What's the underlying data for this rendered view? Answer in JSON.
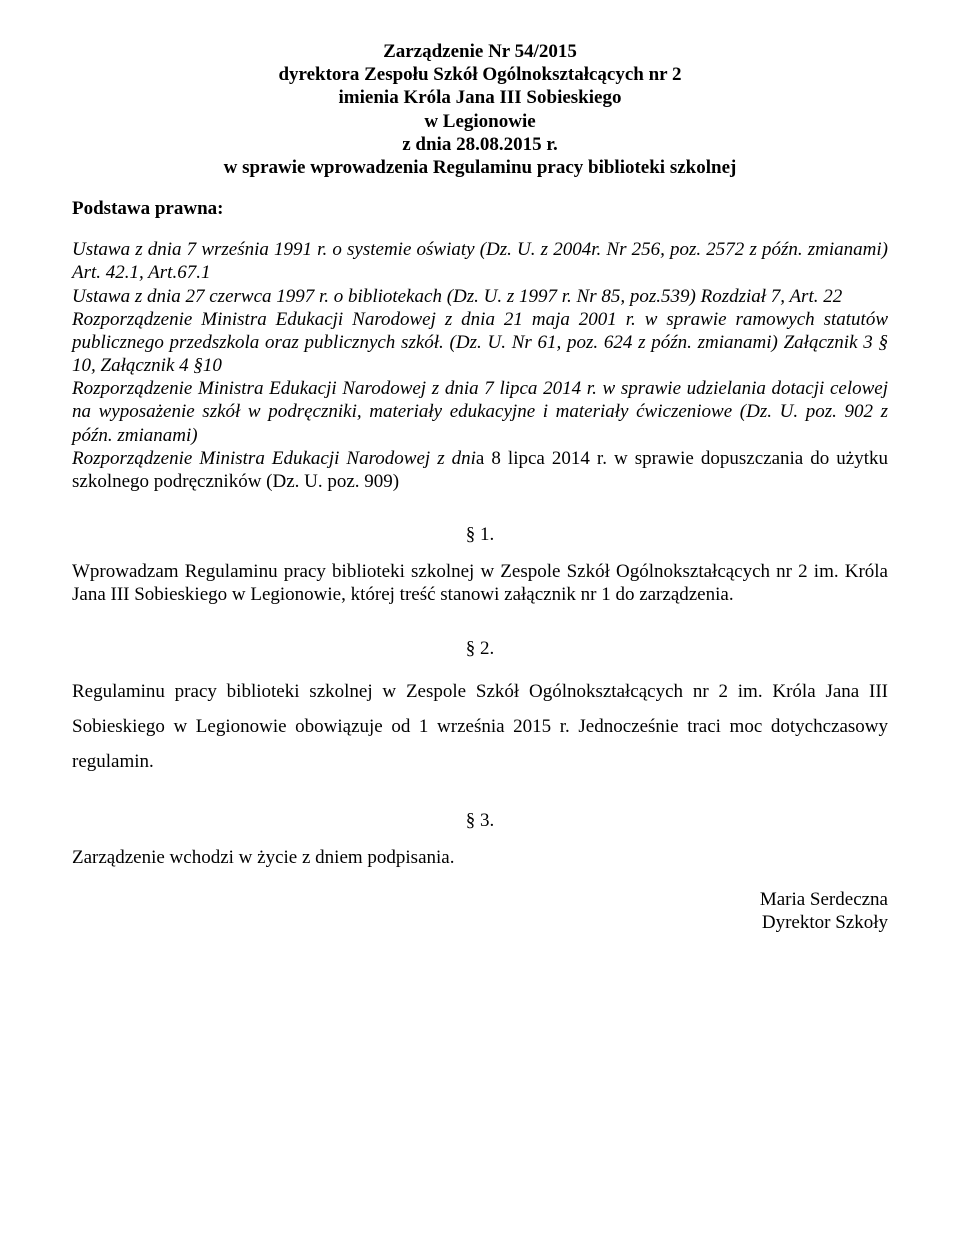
{
  "title": {
    "line1": "Zarządzenie Nr 54/2015",
    "line2": "dyrektora Zespołu Szkół Ogólnokształcących nr 2",
    "line3": "imienia Króla Jana III Sobieskiego",
    "line4": "w Legionowie",
    "line5": "z dnia 28.08.2015 r.",
    "line6": "w sprawie wprowadzenia Regulaminu pracy biblioteki szkolnej"
  },
  "podstawa_label": "Podstawa prawna:",
  "legal": {
    "p1": "Ustawa z dnia 7 września 1991 r. o systemie oświaty (Dz. U. z 2004r. Nr 256, poz. 2572 z późn. zmianami) Art. 42.1, Art.67.1",
    "p2": "Ustawa z dnia 27 czerwca 1997 r. o bibliotekach (Dz. U. z 1997 r. Nr 85, poz.539) Rozdział 7, Art. 22",
    "p3a": "Rozporządzenie Ministra Edukacji Narodowej z dnia 21 maja 2001 r.",
    "p3b": " w sprawie ramowych statutów publicznego przedszkola oraz publicznych szkół. (Dz. U. Nr 61, poz. 624 z późn. zmianami) Załącznik 3 § 10, Załącznik 4 §10",
    "p4": "Rozporządzenie Ministra Edukacji Narodowej z dnia 7 lipca 2014 r. w sprawie udzielania dotacji celowej na wyposażenie szkół w podręczniki, materiały edukacyjne i materiały ćwiczeniowe (Dz. U. poz. 902 z późn. zmianami)",
    "p5a": "Rozporządzenie Ministra Edukacji Narodowej z dni",
    "p5b": "a 8 lipca 2014 r. w sprawie dopuszczania do użytku szkolnego podręczników (Dz. U. poz. 909)"
  },
  "sections": {
    "s1_num": "§ 1.",
    "s1_text": "Wprowadzam Regulaminu pracy biblioteki szkolnej w Zespole Szkół Ogólnokształcących nr 2 im. Króla Jana III Sobieskiego w Legionowie, której treść stanowi załącznik nr 1 do zarządzenia.",
    "s2_num": "§ 2.",
    "s2_text_a": "Regulaminu pracy biblioteki szkolnej w Zespole Szkół Ogólnokształcących nr 2 im.",
    "s2_text_b": " Króla Jana III Sobieskiego w Legionowie obowiązuje od 1 września 2015 r. Jednocześnie traci moc dotychczasowy regulamin.",
    "s3_num": "§ 3.",
    "s3_text": "Zarządzenie wchodzi w życie z dniem podpisania."
  },
  "signature": {
    "name": "Maria Serdeczna",
    "role": "Dyrektor Szkoły"
  }
}
